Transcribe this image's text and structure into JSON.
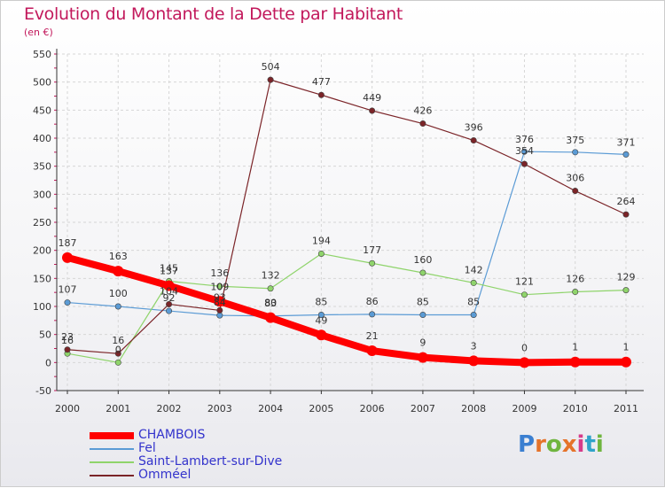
{
  "title": "Evolution du Montant de la Dette par Habitant",
  "subtitle": "(en €)",
  "logo": {
    "letters": [
      "P",
      "r",
      "o",
      "x",
      "i",
      "t",
      "i"
    ],
    "colors": [
      "#3b7fd1",
      "#e5732a",
      "#6fb53f",
      "#e5732a",
      "#d63c8a",
      "#2fa3c9",
      "#6fb53f"
    ]
  },
  "chart_data": {
    "type": "line",
    "x": [
      "2000",
      "2001",
      "2002",
      "2003",
      "2004",
      "2005",
      "2006",
      "2007",
      "2008",
      "2009",
      "2010",
      "2011"
    ],
    "y_ticks": [
      "-50",
      "0",
      "50",
      "100",
      "150",
      "200",
      "250",
      "300",
      "350",
      "400",
      "450",
      "500",
      "550"
    ],
    "ylim": [
      -50,
      550
    ],
    "grid": true,
    "legend_position": "bottom-left",
    "series": [
      {
        "name": "Fel",
        "color": "#5b9bd5",
        "values": [
          107,
          100,
          92,
          84,
          83,
          85,
          86,
          85,
          85,
          376,
          375,
          371
        ],
        "labels": [
          "107",
          "100",
          "92",
          "84",
          "83",
          "85",
          "86",
          "85",
          "85",
          "376",
          "375",
          "371"
        ]
      },
      {
        "name": "Saint-Lambert-sur-Dive",
        "color": "#8fd46b",
        "values": [
          16,
          0,
          145,
          136,
          132,
          194,
          177,
          160,
          142,
          121,
          126,
          129
        ],
        "labels": [
          "16",
          "0",
          "145",
          "136",
          "132",
          "194",
          "177",
          "160",
          "142",
          "121",
          "126",
          "129"
        ]
      },
      {
        "name": "Omméel",
        "color": "#7b2428",
        "values": [
          23,
          16,
          104,
          93,
          504,
          477,
          449,
          426,
          396,
          354,
          306,
          264
        ],
        "labels": [
          "23",
          "16",
          "104",
          "93",
          "504",
          "477",
          "449",
          "426",
          "396",
          "354",
          "306",
          "264"
        ]
      },
      {
        "name": "CHAMBOIS",
        "color": "#ff0000",
        "values": [
          187,
          163,
          137,
          109,
          80,
          49,
          21,
          9,
          3,
          0,
          1,
          1
        ],
        "labels": [
          "187",
          "163",
          "137",
          "109",
          "80",
          "49",
          "21",
          "9",
          "3",
          "0",
          "1",
          "1"
        ]
      }
    ],
    "legend_order": [
      "CHAMBOIS",
      "Fel",
      "Saint-Lambert-sur-Dive",
      "Omméel"
    ]
  }
}
